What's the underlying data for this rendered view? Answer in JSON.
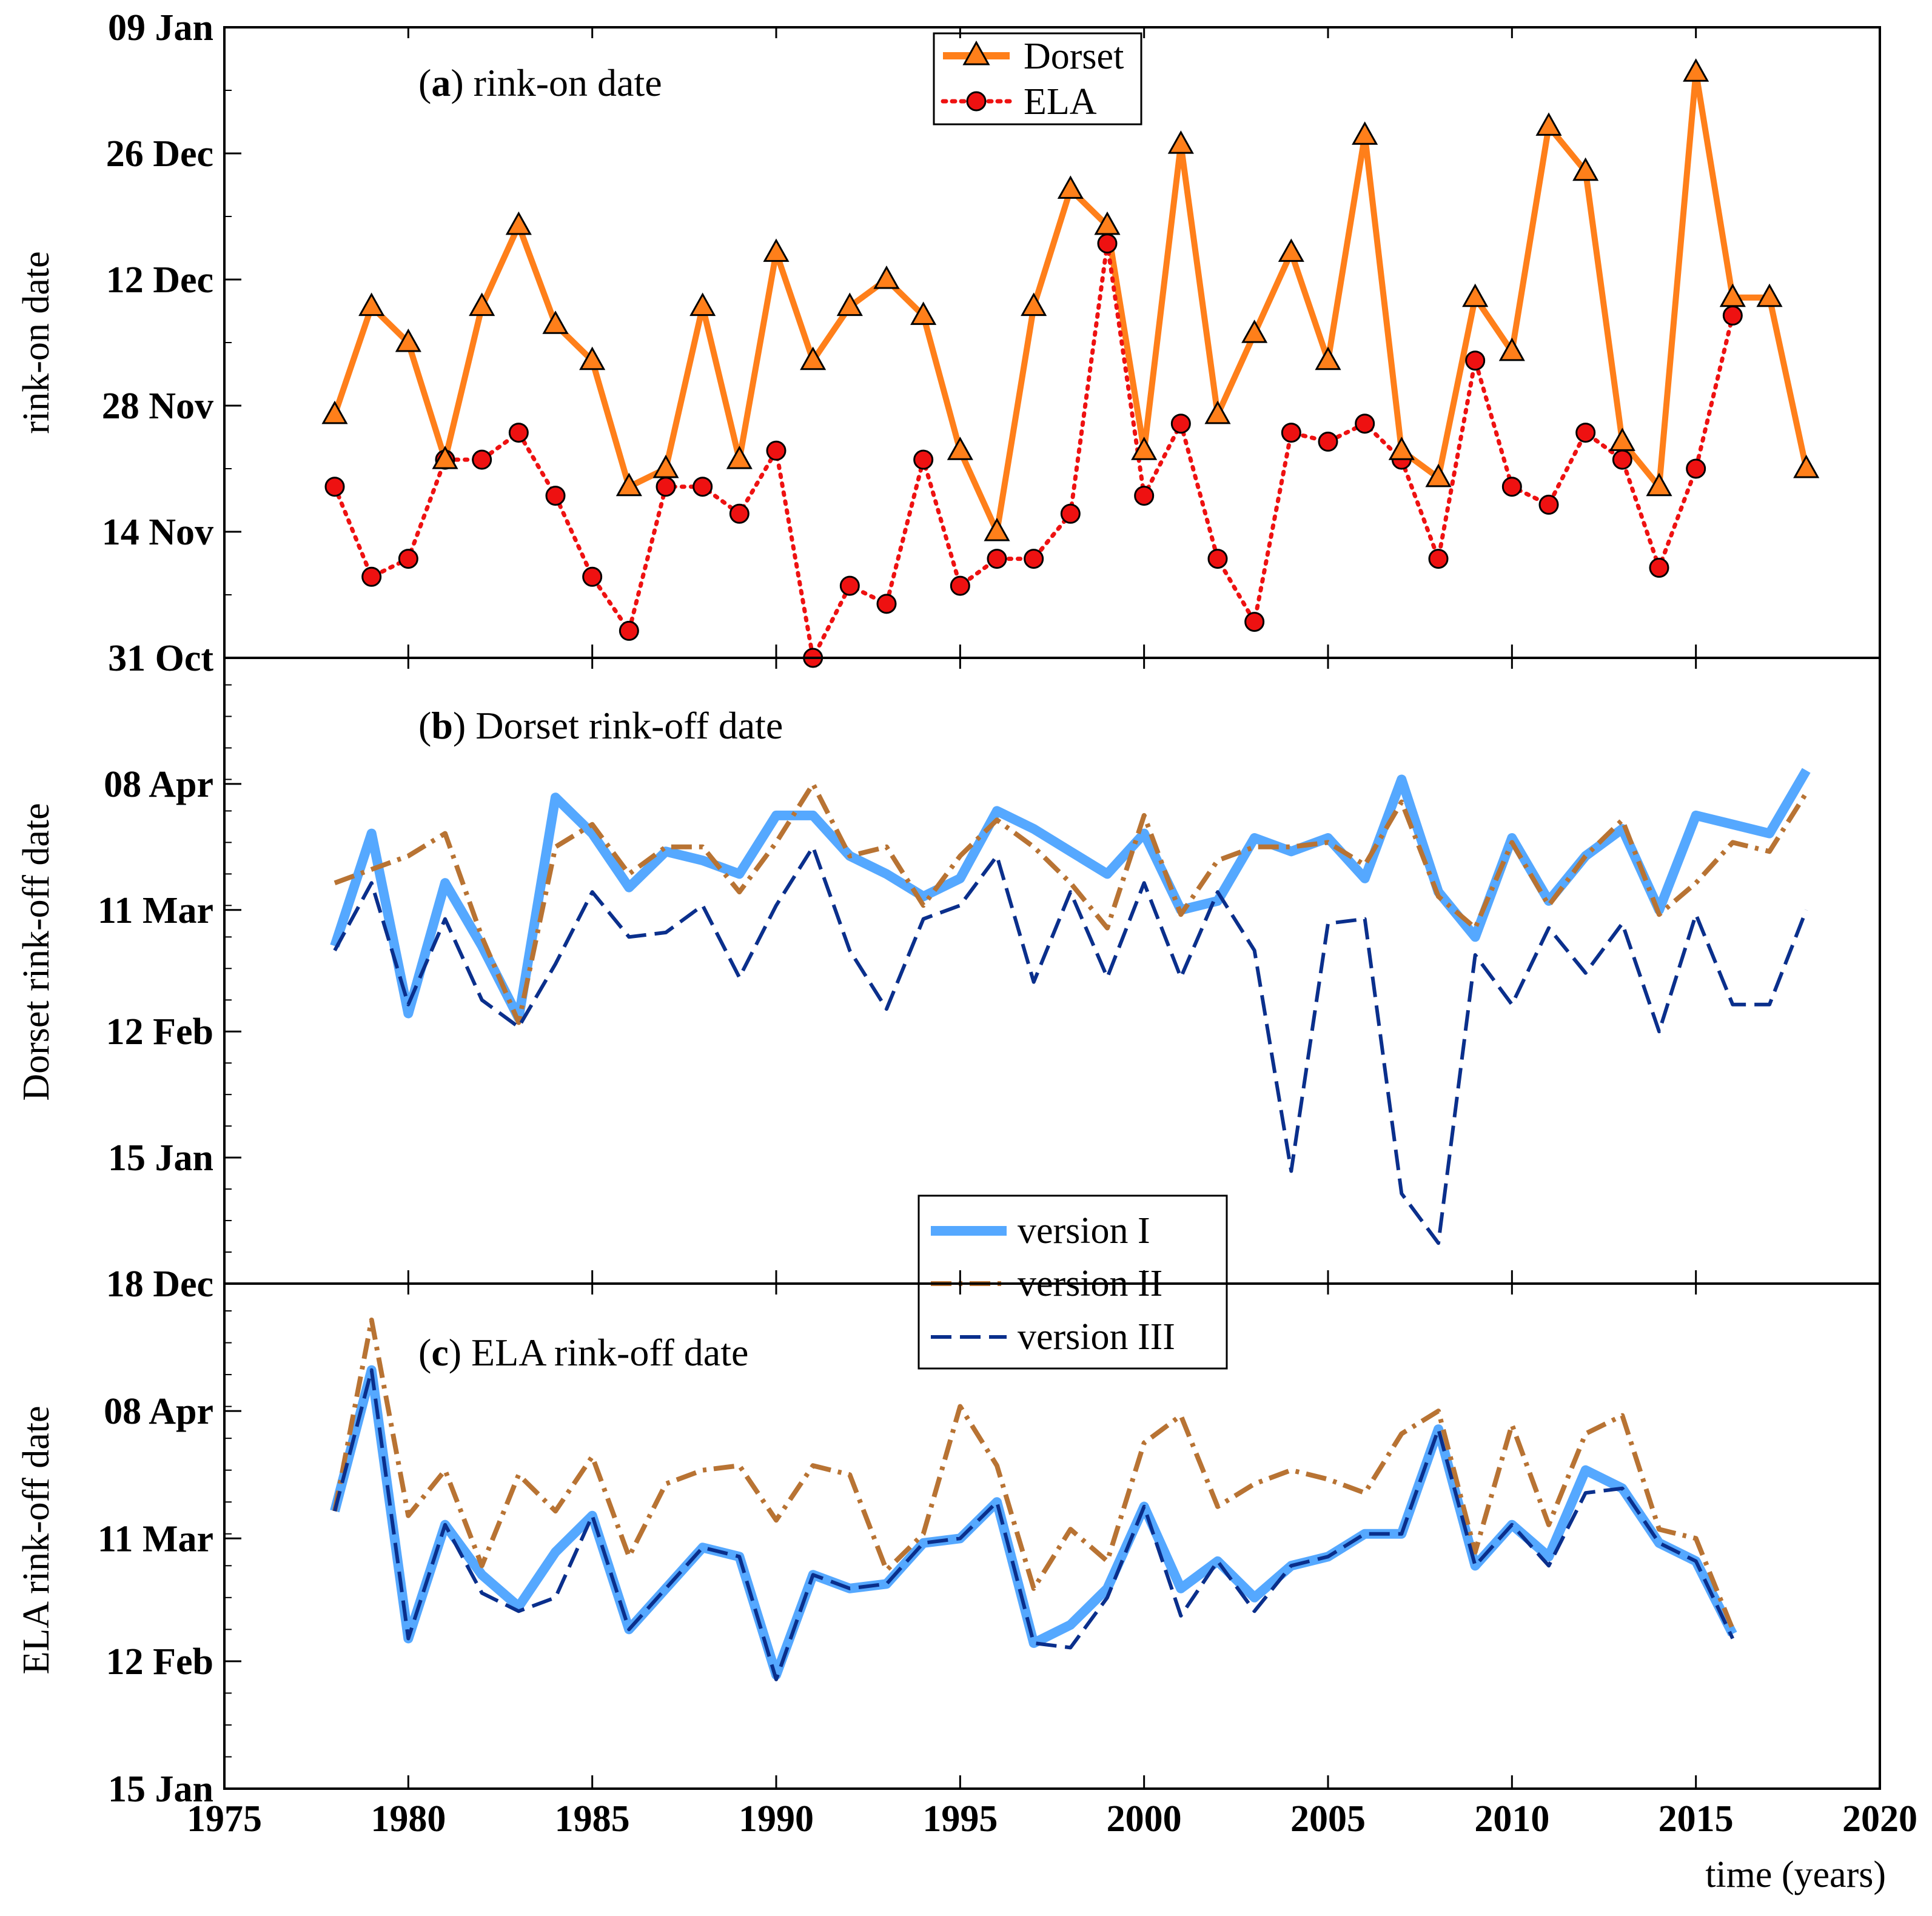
{
  "chart_data": {
    "type": "line",
    "x_label": "time (years)",
    "x_range": [
      1975,
      2020
    ],
    "x_ticks": [
      "1975",
      "1980",
      "1985",
      "1990",
      "1995",
      "2000",
      "2005",
      "2010",
      "2015",
      "2020"
    ],
    "panels": [
      {
        "id": "a",
        "title_bold": "a",
        "title_text": "rink-on date",
        "ylabel": "rink-on date",
        "y_unit": "day of season (0 = 31 Oct)",
        "ylim": [
          0,
          70
        ],
        "y_ticks": [
          {
            "value": 0,
            "label": "31 Oct"
          },
          {
            "value": 14,
            "label": "14 Nov"
          },
          {
            "value": 28,
            "label": "28 Nov"
          },
          {
            "value": 42,
            "label": "12 Dec"
          },
          {
            "value": 56,
            "label": "26 Dec"
          },
          {
            "value": 70,
            "label": "09 Jan"
          }
        ],
        "legend": {
          "position": "top-center"
        },
        "series": [
          {
            "name": "Dorset",
            "color": "#ff7f1a",
            "style": "solid-triangle",
            "x": [
              1978,
              1979,
              1980,
              1981,
              1982,
              1983,
              1984,
              1985,
              1986,
              1987,
              1988,
              1989,
              1990,
              1991,
              1992,
              1993,
              1994,
              1995,
              1996,
              1997,
              1998,
              1999,
              2000,
              2001,
              2002,
              2003,
              2004,
              2005,
              2006,
              2007,
              2008,
              2009,
              2010,
              2011,
              2012,
              2013,
              2014,
              2015,
              2016,
              2017,
              2018
            ],
            "values": [
              27,
              39,
              35,
              22,
              39,
              48,
              37,
              33,
              19,
              21,
              39,
              22,
              45,
              33,
              39,
              42,
              38,
              23,
              14,
              39,
              52,
              48,
              23,
              57,
              27,
              36,
              45,
              33,
              58,
              23,
              20,
              40,
              34,
              59,
              54,
              24,
              19,
              65,
              40,
              40,
              21
            ]
          },
          {
            "name": "ELA",
            "color": "#ee1111",
            "style": "dotted-circle",
            "x": [
              1978,
              1979,
              1980,
              1981,
              1982,
              1983,
              1984,
              1985,
              1986,
              1987,
              1988,
              1989,
              1990,
              1991,
              1992,
              1993,
              1994,
              1995,
              1996,
              1997,
              1998,
              1999,
              2000,
              2001,
              2002,
              2003,
              2004,
              2005,
              2006,
              2007,
              2008,
              2009,
              2010,
              2011,
              2012,
              2013,
              2014,
              2015,
              2016
            ],
            "values": [
              19,
              9,
              11,
              22,
              22,
              25,
              18,
              9,
              3,
              19,
              19,
              16,
              23,
              0,
              8,
              6,
              22,
              8,
              11,
              11,
              16,
              46,
              18,
              26,
              11,
              4,
              25,
              24,
              26,
              22,
              11,
              33,
              19,
              17,
              25,
              22,
              10,
              21,
              38
            ]
          }
        ]
      },
      {
        "id": "b",
        "title_bold": "b",
        "title_text": "Dorset rink-off date",
        "ylabel": "Dorset rink-off date",
        "y_unit": "day of season (0 = 18 Dec)",
        "ylim": [
          0,
          139
        ],
        "y_ticks": [
          {
            "value": 0,
            "label": "18 Dec"
          },
          {
            "value": 28,
            "label": "15 Jan"
          },
          {
            "value": 56,
            "label": "12 Feb"
          },
          {
            "value": 83,
            "label": "11 Mar"
          },
          {
            "value": 111,
            "label": "08 Apr"
          }
        ],
        "legend": {
          "position": "lower-center"
        },
        "series": [
          {
            "name": "version I",
            "color": "#55a8ff",
            "style": "thick-solid",
            "x": [
              1978,
              1979,
              1980,
              1981,
              1982,
              1983,
              1984,
              1985,
              1986,
              1987,
              1988,
              1989,
              1990,
              1991,
              1992,
              1993,
              1994,
              1995,
              1996,
              1997,
              1998,
              1999,
              2000,
              2001,
              2002,
              2003,
              2004,
              2005,
              2006,
              2007,
              2008,
              2009,
              2010,
              2011,
              2012,
              2013,
              2014,
              2015,
              2016,
              2017,
              2018
            ],
            "values": [
              75,
              100,
              60,
              89,
              75,
              59,
              108,
              100,
              88,
              96,
              94,
              91,
              104,
              104,
              95,
              91,
              86,
              90,
              105,
              101,
              96,
              91,
              100,
              83,
              85,
              99,
              96,
              99,
              90,
              112,
              87,
              77,
              99,
              85,
              95,
              101,
              83,
              104,
              102,
              100,
              114
            ]
          },
          {
            "name": "version II",
            "color": "#b87333",
            "style": "dash-dot",
            "x": [
              1978,
              1979,
              1980,
              1981,
              1982,
              1983,
              1984,
              1985,
              1986,
              1987,
              1988,
              1989,
              1990,
              1991,
              1992,
              1993,
              1994,
              1995,
              1996,
              1997,
              1998,
              1999,
              2000,
              2001,
              2002,
              2003,
              2004,
              2005,
              2006,
              2007,
              2008,
              2009,
              2010,
              2011,
              2012,
              2013,
              2014,
              2015,
              2016,
              2017,
              2018
            ],
            "values": [
              89,
              92,
              95,
              100,
              77,
              58,
              97,
              102,
              91,
              97,
              97,
              87,
              98,
              111,
              95,
              97,
              84,
              95,
              103,
              97,
              89,
              79,
              104,
              82,
              94,
              97,
              97,
              98,
              93,
              107,
              86,
              79,
              98,
              84,
              95,
              103,
              82,
              89,
              98,
              96,
              109
            ]
          },
          {
            "name": "version III",
            "color": "#0a2f8c",
            "style": "long-dash",
            "x": [
              1978,
              1979,
              1980,
              1981,
              1982,
              1983,
              1984,
              1985,
              1986,
              1987,
              1988,
              1989,
              1990,
              1991,
              1992,
              1993,
              1994,
              1995,
              1996,
              1997,
              1998,
              1999,
              2000,
              2001,
              2002,
              2003,
              2004,
              2005,
              2006,
              2007,
              2008,
              2009,
              2010,
              2011,
              2012,
              2013,
              2014,
              2015,
              2016,
              2017,
              2018
            ],
            "values": [
              74,
              89,
              62,
              81,
              63,
              57,
              71,
              87,
              77,
              78,
              84,
              68,
              84,
              97,
              74,
              61,
              81,
              84,
              95,
              67,
              87,
              68,
              89,
              68,
              87,
              74,
              25,
              80,
              81,
              20,
              9,
              73,
              62,
              79,
              69,
              80,
              56,
              82,
              62,
              62,
              83
            ]
          }
        ]
      },
      {
        "id": "c",
        "title_bold": "c",
        "title_text": "ELA rink-off date",
        "ylabel": "ELA rink-off date",
        "y_unit": "day of season (0 = 15 Jan)",
        "ylim": [
          0,
          111
        ],
        "y_ticks": [
          {
            "value": 0,
            "label": "15 Jan"
          },
          {
            "value": 28,
            "label": "12 Feb"
          },
          {
            "value": 55,
            "label": "11 Mar"
          },
          {
            "value": 83,
            "label": "08 Apr"
          }
        ],
        "series": [
          {
            "name": "version I",
            "color": "#55a8ff",
            "style": "thick-solid",
            "x": [
              1978,
              1979,
              1980,
              1981,
              1982,
              1983,
              1984,
              1985,
              1986,
              1987,
              1988,
              1989,
              1990,
              1991,
              1992,
              1993,
              1994,
              1995,
              1996,
              1997,
              1998,
              1999,
              2000,
              2001,
              2002,
              2003,
              2004,
              2005,
              2006,
              2007,
              2008,
              2009,
              2010,
              2011,
              2012,
              2013,
              2014,
              2015,
              2016
            ],
            "values": [
              61,
              92,
              33,
              58,
              47,
              40,
              52,
              60,
              35,
              44,
              53,
              51,
              25,
              47,
              44,
              45,
              54,
              55,
              63,
              32,
              36,
              44,
              62,
              44,
              50,
              42,
              49,
              51,
              56,
              56,
              79,
              49,
              58,
              51,
              70,
              66,
              54,
              50,
              34
            ]
          },
          {
            "name": "version II",
            "color": "#b87333",
            "style": "dash-dot",
            "x": [
              1978,
              1979,
              1980,
              1981,
              1982,
              1983,
              1984,
              1985,
              1986,
              1987,
              1988,
              1989,
              1990,
              1991,
              1992,
              1993,
              1994,
              1995,
              1996,
              1997,
              1998,
              1999,
              2000,
              2001,
              2002,
              2003,
              2004,
              2005,
              2006,
              2007,
              2008,
              2009,
              2010,
              2011,
              2012,
              2013,
              2014,
              2015,
              2016
            ],
            "values": [
              61,
              103,
              60,
              70,
              49,
              69,
              61,
              73,
              51,
              67,
              70,
              71,
              59,
              71,
              69,
              48,
              56,
              84,
              71,
              44,
              57,
              50,
              76,
              82,
              62,
              67,
              70,
              68,
              65,
              78,
              83,
              52,
              80,
              58,
              78,
              82,
              57,
              55,
              35
            ]
          },
          {
            "name": "version III",
            "color": "#0a2f8c",
            "style": "long-dash",
            "x": [
              1978,
              1979,
              1980,
              1981,
              1982,
              1983,
              1984,
              1985,
              1986,
              1987,
              1988,
              1989,
              1990,
              1991,
              1992,
              1993,
              1994,
              1995,
              1996,
              1997,
              1998,
              1999,
              2000,
              2001,
              2002,
              2003,
              2004,
              2005,
              2006,
              2007,
              2008,
              2009,
              2010,
              2011,
              2012,
              2013,
              2014,
              2015,
              2016
            ],
            "values": [
              61,
              92,
              33,
              58,
              43,
              39,
              42,
              60,
              35,
              44,
              53,
              51,
              24,
              47,
              44,
              45,
              54,
              55,
              63,
              32,
              31,
              42,
              62,
              38,
              50,
              39,
              49,
              51,
              56,
              56,
              79,
              49,
              58,
              49,
              65,
              66,
              54,
              50,
              33
            ]
          }
        ]
      }
    ]
  }
}
